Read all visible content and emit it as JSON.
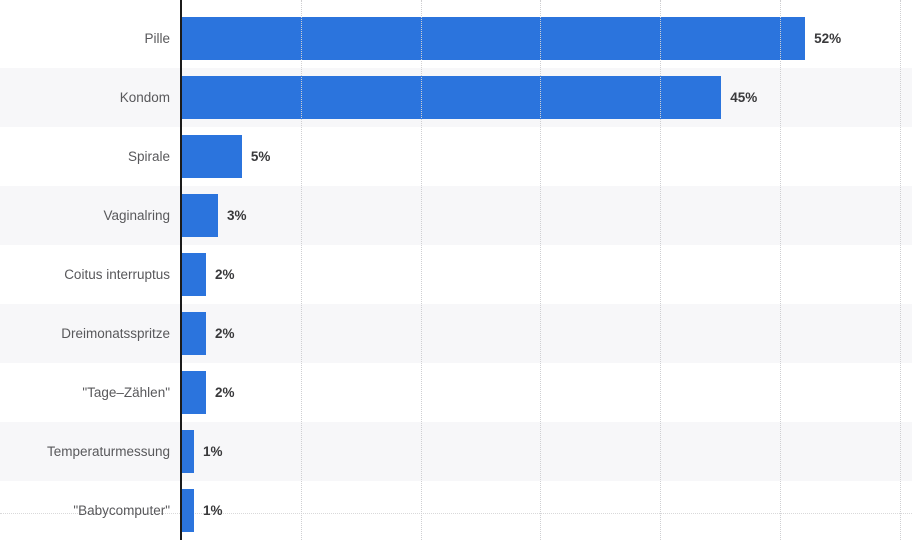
{
  "chart_data": {
    "type": "bar",
    "orientation": "horizontal",
    "title": "",
    "xlabel": "",
    "ylabel": "",
    "categories": [
      "Pille",
      "Kondom",
      "Spirale",
      "Vaginalring",
      "Coitus interruptus",
      "Dreimonatsspritze",
      "\"Tage–Zählen\"",
      "Temperaturmessung",
      "\"Babycomputer\""
    ],
    "values": [
      52,
      45,
      5,
      3,
      2,
      2,
      2,
      1,
      1
    ],
    "value_labels": [
      "52%",
      "45%",
      "5%",
      "3%",
      "2%",
      "2%",
      "2%",
      "1%",
      "1%"
    ],
    "xlim": [
      0,
      60
    ],
    "grid_step": 10,
    "grid": "vertical-dotted",
    "legend": "none",
    "row_bands": "alternating",
    "axis_ticks_visible": false
  },
  "style": {
    "bar_color": "#2B74DD",
    "band_color": "#f7f7f9",
    "gridline_color": "#cfcfd2",
    "axis_color": "#1b1b1b",
    "label_color": "#58585b",
    "value_color": "#39393b",
    "guideline_color": "#d9d9da",
    "background": "#ffffff"
  }
}
